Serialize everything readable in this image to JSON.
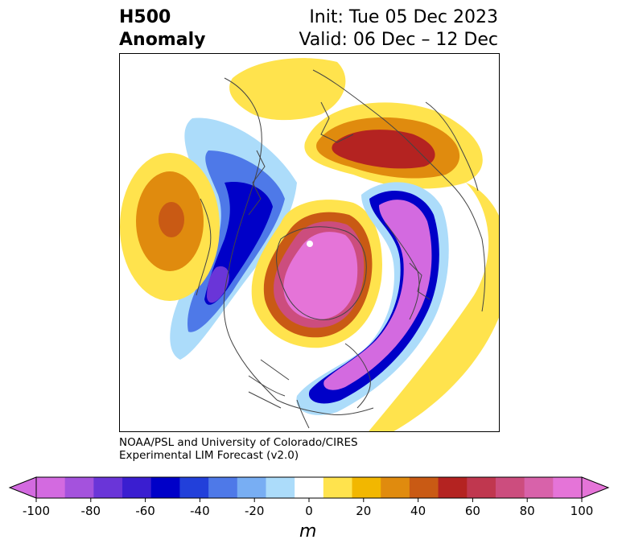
{
  "title": {
    "main_line1": "H500",
    "main_line2": "Anomaly",
    "init": "Init: Tue 05 Dec 2023",
    "valid": "Valid: 06 Dec – 12 Dec"
  },
  "credit": {
    "line1": "NOAA/PSL and University of Colorado/CIRES",
    "line2": "Experimental LIM Forecast (v2.0)"
  },
  "colorbar": {
    "unit": "m",
    "ticks": [
      "-100",
      "-80",
      "-60",
      "-40",
      "-20",
      "0",
      "20",
      "40",
      "60",
      "80",
      "100"
    ],
    "colors": [
      "#d36ae0",
      "#a452dd",
      "#6a35d8",
      "#3a1ed0",
      "#0000c8",
      "#2240da",
      "#4e79e8",
      "#78aef3",
      "#acdcfa",
      "#ffffff",
      "#ffe34d",
      "#f2b700",
      "#e08b0e",
      "#c95a14",
      "#b42321",
      "#c0374f",
      "#cc4d7e",
      "#d862aa",
      "#e574d8"
    ]
  },
  "map_data": {
    "projection": "north-polar-stereographic",
    "variable": "500 hPa geopotential height anomaly",
    "features": [
      {
        "name": "arctic-positive-anomaly",
        "sign": "positive",
        "peak": 100
      },
      {
        "name": "north-atlantic-negative-trough",
        "sign": "negative",
        "peak": -100
      },
      {
        "name": "north-pacific-negative-trough",
        "sign": "negative",
        "peak": -80
      },
      {
        "name": "subtropical-pacific-positive-anomaly",
        "sign": "positive",
        "peak": 40
      },
      {
        "name": "siberia-positive-anomaly",
        "sign": "positive",
        "peak": 60
      },
      {
        "name": "europe-positive-anomaly",
        "sign": "positive",
        "peak": 40
      },
      {
        "name": "europe-positive-anomaly-north",
        "sign": "positive",
        "peak": 20
      }
    ]
  }
}
